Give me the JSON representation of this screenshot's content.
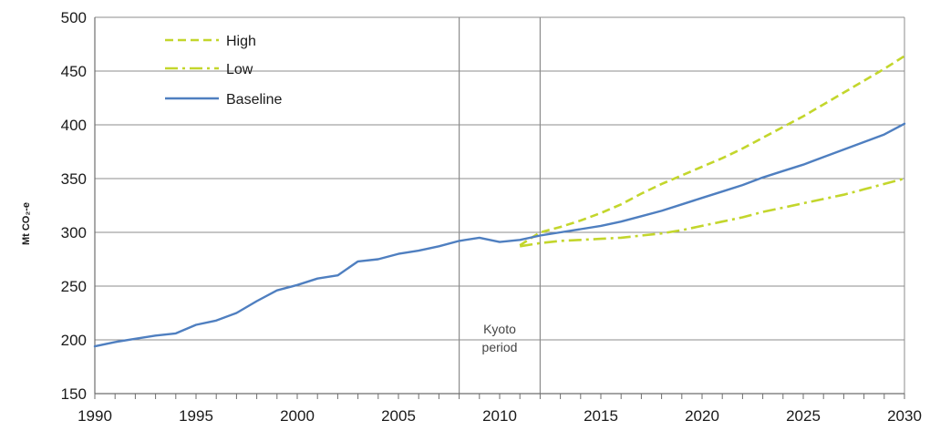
{
  "chart_data": {
    "type": "line",
    "title": "",
    "xlabel": "",
    "ylabel": "Mt CO₂-e",
    "xlim": [
      1990,
      2030
    ],
    "ylim": [
      150,
      500
    ],
    "x_ticks": [
      "1990",
      "1995",
      "2000",
      "2005",
      "2010",
      "2015",
      "2020",
      "2025",
      "2030"
    ],
    "y_ticks": [
      "150",
      "200",
      "250",
      "300",
      "350",
      "400",
      "450",
      "500"
    ],
    "grid": "horizontal",
    "legend_position": "top-left",
    "annotation": {
      "label_line1": "Kyoto",
      "label_line2": "period",
      "x_start": 2008,
      "x_end": 2012
    },
    "series": [
      {
        "name": "High",
        "style": "dashed",
        "color": "#c3d62c",
        "points": [
          [
            2011,
            288
          ],
          [
            2012,
            300
          ],
          [
            2013,
            305
          ],
          [
            2014,
            311
          ],
          [
            2015,
            318
          ],
          [
            2016,
            326
          ],
          [
            2017,
            336
          ],
          [
            2018,
            345
          ],
          [
            2019,
            353
          ],
          [
            2020,
            361
          ],
          [
            2021,
            369
          ],
          [
            2022,
            378
          ],
          [
            2023,
            388
          ],
          [
            2024,
            398
          ],
          [
            2025,
            408
          ],
          [
            2026,
            419
          ],
          [
            2027,
            430
          ],
          [
            2028,
            441
          ],
          [
            2029,
            452
          ],
          [
            2030,
            464
          ]
        ]
      },
      {
        "name": "Low",
        "style": "dashdot",
        "color": "#c3d62c",
        "points": [
          [
            2011,
            287
          ],
          [
            2012,
            290
          ],
          [
            2013,
            292
          ],
          [
            2014,
            293
          ],
          [
            2015,
            294
          ],
          [
            2016,
            295
          ],
          [
            2017,
            297
          ],
          [
            2018,
            299
          ],
          [
            2019,
            302
          ],
          [
            2020,
            306
          ],
          [
            2021,
            310
          ],
          [
            2022,
            314
          ],
          [
            2023,
            319
          ],
          [
            2024,
            323
          ],
          [
            2025,
            327
          ],
          [
            2026,
            331
          ],
          [
            2027,
            335
          ],
          [
            2028,
            340
          ],
          [
            2029,
            345
          ],
          [
            2030,
            350
          ]
        ]
      },
      {
        "name": "Baseline",
        "style": "solid",
        "color": "#4f7fc0",
        "points": [
          [
            1990,
            194
          ],
          [
            1991,
            198
          ],
          [
            1992,
            201
          ],
          [
            1993,
            204
          ],
          [
            1994,
            206
          ],
          [
            1995,
            214
          ],
          [
            1996,
            218
          ],
          [
            1997,
            225
          ],
          [
            1998,
            236
          ],
          [
            1999,
            246
          ],
          [
            2000,
            251
          ],
          [
            2001,
            257
          ],
          [
            2002,
            260
          ],
          [
            2003,
            273
          ],
          [
            2004,
            275
          ],
          [
            2005,
            280
          ],
          [
            2006,
            283
          ],
          [
            2007,
            287
          ],
          [
            2008,
            292
          ],
          [
            2009,
            295
          ],
          [
            2010,
            291
          ],
          [
            2011,
            293
          ],
          [
            2012,
            297
          ],
          [
            2013,
            300
          ],
          [
            2014,
            303
          ],
          [
            2015,
            306
          ],
          [
            2016,
            310
          ],
          [
            2017,
            315
          ],
          [
            2018,
            320
          ],
          [
            2019,
            326
          ],
          [
            2020,
            332
          ],
          [
            2021,
            338
          ],
          [
            2022,
            344
          ],
          [
            2023,
            351
          ],
          [
            2024,
            357
          ],
          [
            2025,
            363
          ],
          [
            2026,
            370
          ],
          [
            2027,
            377
          ],
          [
            2028,
            384
          ],
          [
            2029,
            391
          ],
          [
            2030,
            401
          ]
        ]
      }
    ]
  }
}
